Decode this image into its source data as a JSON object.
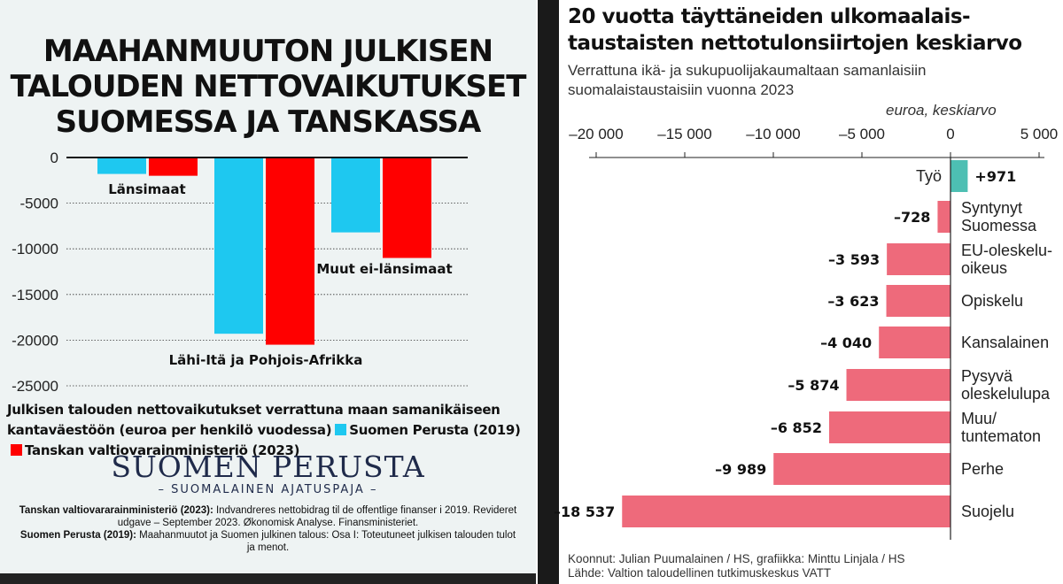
{
  "left_panel": {
    "title_lines": [
      "MAAHANMUUTON JULKISEN",
      "TALOUDEN NETTOVAIKUTUKSET",
      "SUOMESSA JA TANSKASSA"
    ],
    "caption": "Julkisen talouden nettovaikutukset verrattuna maan samanikäiseen kantaväestöön (euroa per henkilö vuodessa)",
    "legend": [
      {
        "label": "Suomen Perusta (2019)",
        "color": "#1ec8f0"
      },
      {
        "label": "Tanskan valtiovarainministeriö (2023)",
        "color": "#ff0000"
      }
    ],
    "brand": "SUOMEN PERUSTA",
    "brand_sub": "– SUOMALAINEN AJATUSPAJA –",
    "sources": [
      {
        "bold": "Tanskan valtiovararainministeriö (2023):",
        "text": " Indvandreres nettobidrag til de offentlige finanser i 2019. Revideret udgave – September 2023. Økonomisk Analyse. Finansministeriet."
      },
      {
        "bold": "Suomen Perusta (2019):",
        "text": " Maahanmuutot ja Suomen julkinen talous: Osa I: Toteutuneet julkisen talouden tulot ja menot."
      }
    ]
  },
  "right_panel": {
    "title_lines": [
      "20 vuotta täyttäneiden ulkomaalais-",
      "taustaisten nettotulonsiirtojen keskiarvo"
    ],
    "subtitle_lines": [
      "Verrattuna ikä- ja sukupuolijakaumaltaan samanlaisiin",
      "suomalaistaustaisiin vuonna 2023"
    ],
    "unit": "euroa, keskiarvo",
    "credits_lines": [
      "Koonnut: Julian Puumalainen / HS, grafiikka: Minttu Linjala / HS",
      "Lähde: Valtion taloudellinen tutkimuskeskus VATT"
    ]
  },
  "chart_data": [
    {
      "type": "bar",
      "categories": [
        "Länsimaat",
        "Lähi-Itä ja Pohjois-Afrikka",
        "Muut ei-länsimaat"
      ],
      "series": [
        {
          "name": "Suomen Perusta (2019)",
          "values": [
            -1800,
            -19300,
            -8200
          ],
          "color": "#1ec8f0"
        },
        {
          "name": "Tanskan valtiovarainministeriö (2023)",
          "values": [
            -2000,
            -20500,
            -11000
          ],
          "color": "#ff0000"
        }
      ],
      "ylim": [
        -25000,
        0
      ],
      "yticks": [
        0,
        -5000,
        -10000,
        -15000,
        -20000,
        -25000
      ],
      "ytick_labels": [
        "0",
        "-5000",
        "-10000",
        "-15000",
        "-20000",
        "-25000"
      ],
      "grid": true
    },
    {
      "type": "bar",
      "orientation": "horizontal",
      "categories": [
        "Työ",
        "Syntynyt Suomessa",
        "EU-oleskelu-oikeus",
        "Opiskelu",
        "Kansalainen",
        "Pysyvä oleskelulupa",
        "Muu/ tuntematon",
        "Perhe",
        "Suojelu"
      ],
      "category_label_lines": [
        [
          "Työ"
        ],
        [
          "Syntynyt",
          "Suomessa"
        ],
        [
          "EU-oleskelu-",
          "oikeus"
        ],
        [
          "Opiskelu"
        ],
        [
          "Kansalainen"
        ],
        [
          "Pysyvä",
          "oleskelulupa"
        ],
        [
          "Muu/",
          "tuntematon"
        ],
        [
          "Perhe"
        ],
        [
          "Suojelu"
        ]
      ],
      "values": [
        971,
        -728,
        -3593,
        -3623,
        -4040,
        -5874,
        -6852,
        -9989,
        -18537
      ],
      "value_labels": [
        "+971",
        "–728",
        "–3 593",
        "–3 623",
        "–4 040",
        "–5 874",
        "–6 852",
        "–9 989",
        "–18 537"
      ],
      "xlim": [
        -20000,
        5000
      ],
      "xticks": [
        -20000,
        -15000,
        -10000,
        -5000,
        0,
        5000
      ],
      "xtick_labels": [
        "–20 000",
        "–15 000",
        "–10 000",
        "–5 000",
        "0",
        "5 000"
      ],
      "colors": {
        "positive": "#4dbfb3",
        "negative": "#ee6a7b"
      }
    }
  ]
}
